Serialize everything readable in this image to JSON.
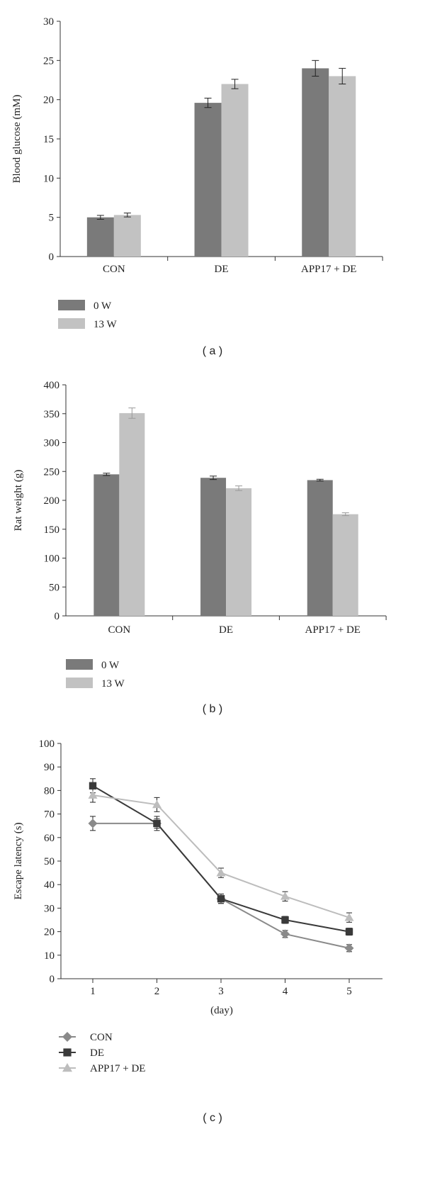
{
  "chart_data": [
    {
      "type": "bar",
      "panel_label": "( a )",
      "categories": [
        "CON",
        "DE",
        "APP17 + DE"
      ],
      "ylabel": "Blood glucose (mM)",
      "xlabel": "",
      "ylim": [
        0,
        30
      ],
      "yticks": [
        0,
        5,
        10,
        15,
        20,
        25,
        30
      ],
      "series": [
        {
          "name": "0 W",
          "color": "#7a7a7a",
          "values": [
            5.0,
            19.6,
            24.0
          ],
          "errors": [
            0.25,
            0.6,
            1.0
          ]
        },
        {
          "name": "13 W",
          "color": "#c2c2c2",
          "values": [
            5.3,
            22.0,
            23.0
          ],
          "errors": [
            0.25,
            0.6,
            1.0
          ]
        }
      ],
      "legend_position": "bottom-left"
    },
    {
      "type": "bar",
      "panel_label": "( b )",
      "categories": [
        "CON",
        "DE",
        "APP17 + DE"
      ],
      "ylabel": "Rat weight (g)",
      "xlabel": "",
      "ylim": [
        0,
        400
      ],
      "yticks": [
        0,
        50,
        100,
        150,
        200,
        250,
        300,
        350,
        400
      ],
      "series": [
        {
          "name": "0 W",
          "color": "#7a7a7a",
          "values": [
            245,
            239,
            235
          ],
          "errors": [
            2,
            3,
            1.5
          ]
        },
        {
          "name": "13 W",
          "color": "#c2c2c2",
          "values": [
            351,
            221,
            176
          ],
          "errors": [
            9,
            4,
            2.5
          ]
        }
      ],
      "legend_position": "bottom-left"
    },
    {
      "type": "line",
      "panel_label": "( c )",
      "x": [
        1,
        2,
        3,
        4,
        5
      ],
      "xlabel": "(day)",
      "ylabel": "Escape latency (s)",
      "ylim": [
        0,
        100
      ],
      "yticks": [
        0,
        10,
        20,
        30,
        40,
        50,
        60,
        70,
        80,
        90,
        100
      ],
      "xticks": [
        1,
        2,
        3,
        4,
        5
      ],
      "series": [
        {
          "name": "CON",
          "color": "#8a8a8a",
          "marker": "diamond",
          "values": [
            66,
            66,
            34,
            19,
            13
          ],
          "errors": [
            3,
            2,
            2,
            1.5,
            1.5
          ]
        },
        {
          "name": "DE",
          "color": "#3a3a3a",
          "marker": "square",
          "values": [
            82,
            66,
            34,
            25,
            20
          ],
          "errors": [
            3,
            3,
            2,
            1.5,
            1.5
          ]
        },
        {
          "name": "APP17 + DE",
          "color": "#bdbdbd",
          "marker": "triangle",
          "values": [
            78,
            74,
            45,
            35,
            26
          ],
          "errors": [
            3,
            3,
            2,
            2,
            2
          ]
        }
      ],
      "legend_position": "bottom-left"
    }
  ]
}
